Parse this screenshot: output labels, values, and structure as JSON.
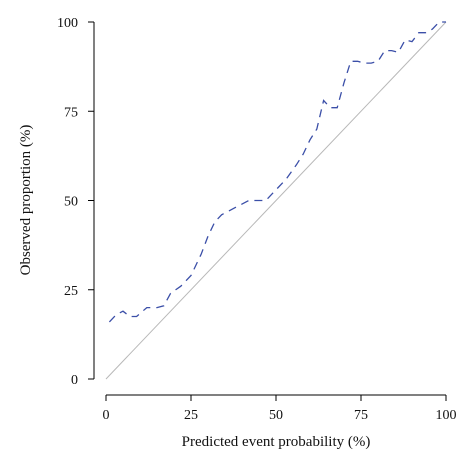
{
  "chart_data": {
    "type": "line",
    "title": "",
    "xlabel": "Predicted event probability (%)",
    "ylabel": "Observed proportion (%)",
    "xlim": [
      0,
      100
    ],
    "ylim": [
      0,
      100
    ],
    "x_ticks": [
      "0",
      "25",
      "50",
      "75",
      "100"
    ],
    "y_ticks": [
      "0",
      "25",
      "50",
      "75",
      "100"
    ],
    "grid": false,
    "legend": "none",
    "reference_line": {
      "x": [
        0,
        100
      ],
      "y": [
        0,
        100
      ],
      "color": "#b8b8b8"
    },
    "series": [
      {
        "color": "#3b4fa8",
        "style": "dashed",
        "x": [
          1,
          3,
          5,
          7,
          9,
          12,
          15,
          17,
          19,
          22,
          25,
          28,
          30,
          32,
          34,
          36,
          38,
          40,
          42,
          44,
          47,
          50,
          53,
          56,
          58,
          60,
          62,
          64,
          66,
          68,
          70,
          72,
          74,
          76,
          78,
          80,
          82,
          84,
          86,
          88,
          90,
          92,
          94,
          96,
          98,
          100
        ],
        "y": [
          16,
          18,
          19,
          17.5,
          17.5,
          20,
          20,
          20.5,
          24,
          26,
          29,
          35,
          40,
          44,
          46,
          47,
          48,
          49,
          50,
          50,
          50,
          53,
          56,
          60,
          63,
          67,
          70,
          78,
          76,
          76,
          83,
          89,
          89,
          88.5,
          88.5,
          89,
          92,
          92,
          91.5,
          95,
          94.5,
          97,
          97,
          98,
          100,
          100
        ]
      }
    ]
  }
}
